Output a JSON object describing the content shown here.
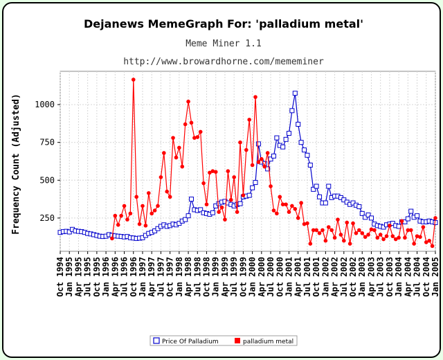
{
  "chart_data": {
    "type": "line",
    "title": "Dejanews MemeGraph For: 'palladium metal'",
    "subtitle": "Meme Miner 1.1",
    "url": "http://www.browardhorne.com/mememiner",
    "ylabel": "Frequency Count (Adjusted)",
    "xlabel": "",
    "ylim": [
      30,
      1220
    ],
    "yticks": [
      250,
      500,
      750,
      1000
    ],
    "grid": true,
    "legend_position": "bottom",
    "x_tick_labels": [
      "Oct 1994",
      "Jan 1995",
      "Apr 1995",
      "Jul 1995",
      "Oct 1995",
      "Jan 1996",
      "Apr 1996",
      "Jul 1996",
      "Oct 1996",
      "Jan 1997",
      "Apr 1997",
      "Jul 1997",
      "Oct 1997",
      "Jan 1998",
      "Apr 1998",
      "Jul 1998",
      "Oct 1998",
      "Jan 1999",
      "Apr 1999",
      "Jul 1999",
      "Oct 1999",
      "Jan 2000",
      "Apr 2000",
      "Jul 2000",
      "Oct 2000",
      "Jan 2001",
      "Apr 2001",
      "Jul 2001",
      "Oct 2001",
      "Jan 2002",
      "Apr 2002",
      "Jul 2002",
      "Oct 2002",
      "Jan 2003",
      "Apr 2003",
      "Jul 2003",
      "Oct 2003",
      "Jan 2004",
      "Apr 2004",
      "Jul 2004",
      "Oct 2004",
      "Jan 2005"
    ],
    "x_start": "1994-10",
    "x_end": "2005-01",
    "series": [
      {
        "name": "Price Of Palladium",
        "color": "#0000cc",
        "marker": "open-square",
        "start": "1994-10",
        "values": [
          155,
          160,
          162,
          158,
          175,
          165,
          162,
          160,
          155,
          148,
          145,
          140,
          135,
          130,
          128,
          130,
          140,
          135,
          132,
          130,
          128,
          125,
          128,
          120,
          118,
          115,
          117,
          120,
          135,
          148,
          155,
          165,
          180,
          195,
          205,
          195,
          200,
          210,
          205,
          215,
          230,
          240,
          265,
          375,
          305,
          300,
          305,
          285,
          280,
          275,
          285,
          330,
          345,
          355,
          360,
          350,
          340,
          330,
          340,
          345,
          390,
          395,
          400,
          450,
          485,
          740,
          620,
          610,
          575,
          640,
          660,
          780,
          730,
          720,
          770,
          810,
          960,
          1075,
          870,
          750,
          700,
          665,
          600,
          440,
          460,
          390,
          350,
          350,
          460,
          385,
          395,
          395,
          385,
          370,
          355,
          340,
          350,
          335,
          325,
          280,
          255,
          270,
          250,
          210,
          200,
          195,
          190,
          205,
          210,
          215,
          200,
          195,
          225,
          225,
          245,
          295,
          255,
          265,
          230,
          225,
          225,
          230,
          225,
          220
        ]
      },
      {
        "name": "palladium metal",
        "color": "#ff0000",
        "marker": "filled-circle",
        "start": "1996-03",
        "values": [
          115,
          265,
          205,
          265,
          330,
          240,
          280,
          1165,
          390,
          210,
          330,
          200,
          415,
          280,
          300,
          330,
          520,
          680,
          425,
          390,
          780,
          650,
          715,
          590,
          870,
          1020,
          880,
          780,
          785,
          820,
          480,
          340,
          550,
          560,
          555,
          290,
          320,
          240,
          560,
          370,
          520,
          290,
          750,
          400,
          700,
          900,
          600,
          1050,
          620,
          640,
          590,
          680,
          460,
          300,
          280,
          390,
          340,
          340,
          290,
          330,
          310,
          250,
          350,
          210,
          215,
          80,
          170,
          170,
          150,
          170,
          100,
          190,
          170,
          120,
          240,
          140,
          100,
          220,
          80,
          215,
          150,
          170,
          150,
          125,
          140,
          175,
          170,
          120,
          140,
          110,
          130,
          200,
          130,
          110,
          120,
          230,
          120,
          170,
          170,
          80,
          130,
          125,
          190,
          90,
          100,
          65,
          250
        ]
      }
    ]
  }
}
